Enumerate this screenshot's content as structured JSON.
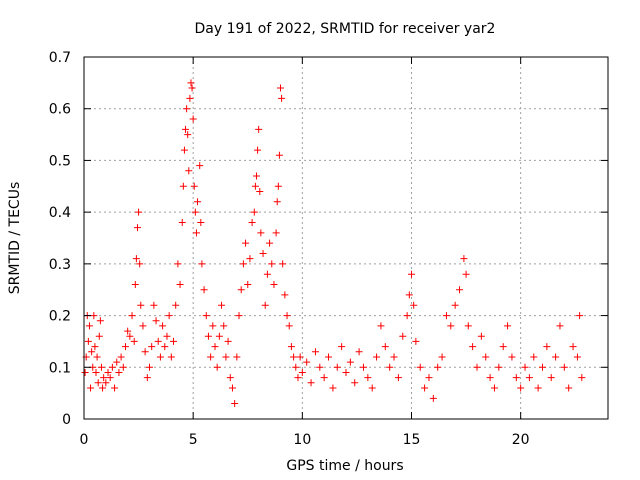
{
  "chart_data": {
    "type": "scatter",
    "title": "Day 191 of 2022, SRMTID for receiver yar2",
    "xlabel": "GPS time / hours",
    "ylabel": "SRMTID / TECUs",
    "xlim": [
      0,
      24
    ],
    "ylim": [
      0,
      0.7
    ],
    "xticks": [
      0,
      5,
      10,
      15,
      20
    ],
    "yticks": [
      0,
      0.1,
      0.2,
      0.3,
      0.4,
      0.5,
      0.6,
      0.7
    ],
    "xtick_labels": [
      "0",
      "5",
      "10",
      "15",
      "20"
    ],
    "ytick_labels": [
      "0",
      "0.1",
      "0.2",
      "0.3",
      "0.4",
      "0.5",
      "0.6",
      "0.7"
    ],
    "grid": true,
    "marker": "+",
    "marker_color": "#ff0000",
    "series": [
      {
        "name": "SRMTID",
        "points": [
          [
            0.05,
            0.09
          ],
          [
            0.1,
            0.12
          ],
          [
            0.15,
            0.2
          ],
          [
            0.2,
            0.15
          ],
          [
            0.25,
            0.18
          ],
          [
            0.3,
            0.06
          ],
          [
            0.35,
            0.13
          ],
          [
            0.4,
            0.1
          ],
          [
            0.45,
            0.2
          ],
          [
            0.5,
            0.14
          ],
          [
            0.55,
            0.09
          ],
          [
            0.6,
            0.12
          ],
          [
            0.65,
            0.07
          ],
          [
            0.7,
            0.16
          ],
          [
            0.75,
            0.19
          ],
          [
            0.8,
            0.1
          ],
          [
            0.85,
            0.06
          ],
          [
            0.9,
            0.08
          ],
          [
            1.0,
            0.07
          ],
          [
            1.1,
            0.09
          ],
          [
            1.2,
            0.08
          ],
          [
            1.3,
            0.1
          ],
          [
            1.4,
            0.06
          ],
          [
            1.5,
            0.11
          ],
          [
            1.6,
            0.09
          ],
          [
            1.7,
            0.12
          ],
          [
            1.8,
            0.1
          ],
          [
            1.9,
            0.14
          ],
          [
            2.0,
            0.17
          ],
          [
            2.1,
            0.16
          ],
          [
            2.2,
            0.2
          ],
          [
            2.3,
            0.15
          ],
          [
            2.35,
            0.26
          ],
          [
            2.4,
            0.31
          ],
          [
            2.45,
            0.37
          ],
          [
            2.5,
            0.4
          ],
          [
            2.55,
            0.3
          ],
          [
            2.6,
            0.22
          ],
          [
            2.7,
            0.18
          ],
          [
            2.8,
            0.13
          ],
          [
            2.9,
            0.08
          ],
          [
            3.0,
            0.1
          ],
          [
            3.1,
            0.14
          ],
          [
            3.2,
            0.22
          ],
          [
            3.3,
            0.19
          ],
          [
            3.4,
            0.15
          ],
          [
            3.5,
            0.12
          ],
          [
            3.6,
            0.18
          ],
          [
            3.7,
            0.14
          ],
          [
            3.8,
            0.16
          ],
          [
            3.9,
            0.2
          ],
          [
            4.0,
            0.12
          ],
          [
            4.1,
            0.15
          ],
          [
            4.2,
            0.22
          ],
          [
            4.3,
            0.3
          ],
          [
            4.4,
            0.26
          ],
          [
            4.5,
            0.38
          ],
          [
            4.55,
            0.45
          ],
          [
            4.6,
            0.52
          ],
          [
            4.65,
            0.56
          ],
          [
            4.7,
            0.6
          ],
          [
            4.75,
            0.55
          ],
          [
            4.8,
            0.48
          ],
          [
            4.85,
            0.62
          ],
          [
            4.9,
            0.65
          ],
          [
            4.95,
            0.64
          ],
          [
            5.0,
            0.58
          ],
          [
            5.05,
            0.45
          ],
          [
            5.1,
            0.4
          ],
          [
            5.15,
            0.36
          ],
          [
            5.2,
            0.42
          ],
          [
            5.3,
            0.49
          ],
          [
            5.35,
            0.38
          ],
          [
            5.4,
            0.3
          ],
          [
            5.5,
            0.25
          ],
          [
            5.6,
            0.2
          ],
          [
            5.7,
            0.16
          ],
          [
            5.8,
            0.12
          ],
          [
            5.9,
            0.18
          ],
          [
            6.0,
            0.14
          ],
          [
            6.1,
            0.1
          ],
          [
            6.2,
            0.16
          ],
          [
            6.3,
            0.22
          ],
          [
            6.4,
            0.18
          ],
          [
            6.5,
            0.12
          ],
          [
            6.6,
            0.15
          ],
          [
            6.7,
            0.08
          ],
          [
            6.8,
            0.06
          ],
          [
            6.9,
            0.03
          ],
          [
            7.0,
            0.12
          ],
          [
            7.1,
            0.2
          ],
          [
            7.2,
            0.25
          ],
          [
            7.3,
            0.3
          ],
          [
            7.4,
            0.34
          ],
          [
            7.5,
            0.26
          ],
          [
            7.6,
            0.31
          ],
          [
            7.7,
            0.38
          ],
          [
            7.8,
            0.4
          ],
          [
            7.85,
            0.45
          ],
          [
            7.9,
            0.47
          ],
          [
            7.95,
            0.52
          ],
          [
            8.0,
            0.56
          ],
          [
            8.05,
            0.44
          ],
          [
            8.1,
            0.36
          ],
          [
            8.2,
            0.32
          ],
          [
            8.3,
            0.22
          ],
          [
            8.4,
            0.28
          ],
          [
            8.5,
            0.34
          ],
          [
            8.6,
            0.3
          ],
          [
            8.7,
            0.26
          ],
          [
            8.8,
            0.36
          ],
          [
            8.85,
            0.42
          ],
          [
            8.9,
            0.45
          ],
          [
            8.95,
            0.51
          ],
          [
            9.0,
            0.64
          ],
          [
            9.05,
            0.62
          ],
          [
            9.1,
            0.3
          ],
          [
            9.2,
            0.24
          ],
          [
            9.3,
            0.2
          ],
          [
            9.4,
            0.18
          ],
          [
            9.5,
            0.14
          ],
          [
            9.6,
            0.12
          ],
          [
            9.7,
            0.1
          ],
          [
            9.8,
            0.08
          ],
          [
            9.9,
            0.12
          ],
          [
            10.0,
            0.09
          ],
          [
            10.2,
            0.11
          ],
          [
            10.4,
            0.07
          ],
          [
            10.6,
            0.13
          ],
          [
            10.8,
            0.1
          ],
          [
            11.0,
            0.08
          ],
          [
            11.2,
            0.12
          ],
          [
            11.4,
            0.06
          ],
          [
            11.6,
            0.1
          ],
          [
            11.8,
            0.14
          ],
          [
            12.0,
            0.09
          ],
          [
            12.2,
            0.11
          ],
          [
            12.4,
            0.07
          ],
          [
            12.6,
            0.13
          ],
          [
            12.8,
            0.1
          ],
          [
            13.0,
            0.08
          ],
          [
            13.2,
            0.06
          ],
          [
            13.4,
            0.12
          ],
          [
            13.6,
            0.18
          ],
          [
            13.8,
            0.14
          ],
          [
            14.0,
            0.1
          ],
          [
            14.2,
            0.12
          ],
          [
            14.4,
            0.08
          ],
          [
            14.6,
            0.16
          ],
          [
            14.8,
            0.2
          ],
          [
            14.9,
            0.24
          ],
          [
            15.0,
            0.28
          ],
          [
            15.1,
            0.22
          ],
          [
            15.2,
            0.15
          ],
          [
            15.4,
            0.1
          ],
          [
            15.6,
            0.06
          ],
          [
            15.8,
            0.08
          ],
          [
            16.0,
            0.04
          ],
          [
            16.2,
            0.1
          ],
          [
            16.4,
            0.12
          ],
          [
            16.6,
            0.2
          ],
          [
            16.8,
            0.18
          ],
          [
            17.0,
            0.22
          ],
          [
            17.2,
            0.25
          ],
          [
            17.4,
            0.31
          ],
          [
            17.5,
            0.28
          ],
          [
            17.6,
            0.18
          ],
          [
            17.8,
            0.14
          ],
          [
            18.0,
            0.1
          ],
          [
            18.2,
            0.16
          ],
          [
            18.4,
            0.12
          ],
          [
            18.6,
            0.08
          ],
          [
            18.8,
            0.06
          ],
          [
            19.0,
            0.1
          ],
          [
            19.2,
            0.14
          ],
          [
            19.4,
            0.18
          ],
          [
            19.6,
            0.12
          ],
          [
            19.8,
            0.08
          ],
          [
            20.0,
            0.06
          ],
          [
            20.2,
            0.1
          ],
          [
            20.4,
            0.08
          ],
          [
            20.6,
            0.12
          ],
          [
            20.8,
            0.06
          ],
          [
            21.0,
            0.1
          ],
          [
            21.2,
            0.14
          ],
          [
            21.4,
            0.08
          ],
          [
            21.6,
            0.12
          ],
          [
            21.8,
            0.18
          ],
          [
            22.0,
            0.1
          ],
          [
            22.2,
            0.06
          ],
          [
            22.4,
            0.14
          ],
          [
            22.6,
            0.12
          ],
          [
            22.7,
            0.2
          ],
          [
            22.8,
            0.08
          ]
        ]
      }
    ]
  }
}
